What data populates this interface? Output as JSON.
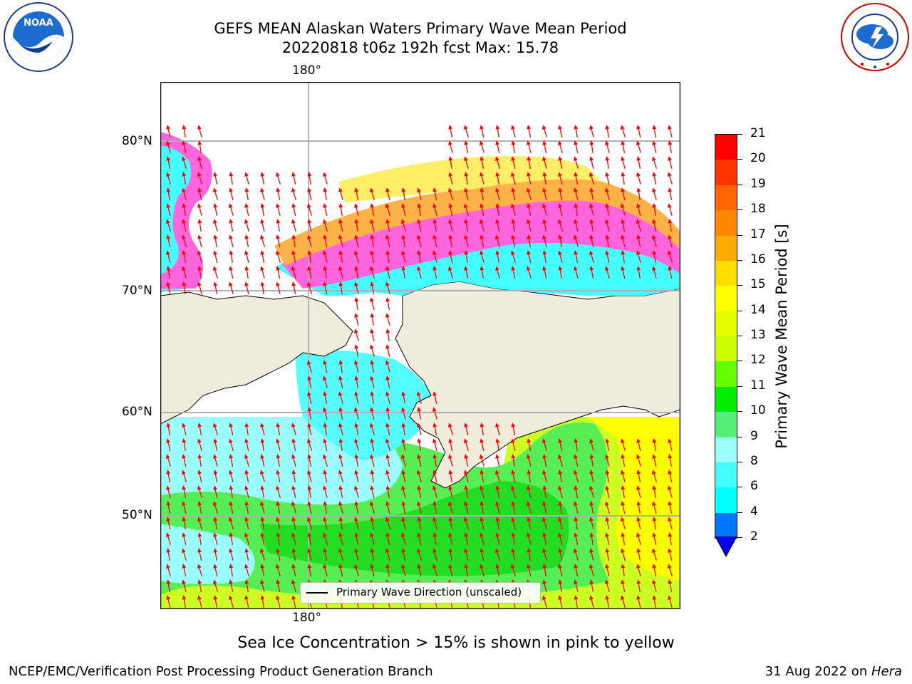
{
  "header": {
    "title_line1": "GEFS MEAN Alaskan Waters Primary Wave Mean Period",
    "title_line2": "20220818 t06z 192h fcst   Max: 15.78"
  },
  "logos": {
    "left": {
      "name": "noaa-logo",
      "text": "NOAA",
      "ring_text": "NATIONAL OCEANIC AND ATMOSPHERIC ADMINISTRATION · U.S. DEPARTMENT OF COMMERCE"
    },
    "right": {
      "name": "nws-logo",
      "ring_text": "NATIONAL WEATHER SERVICE"
    }
  },
  "map": {
    "lon_label_top": "180°",
    "lon_label_bottom": "180°",
    "lat_labels": [
      "80°N",
      "70°N",
      "60°N",
      "50°N"
    ],
    "legend_label": "Primary Wave Direction (unscaled)",
    "colors": {
      "land": "#efecdc",
      "ice_pink": "#ff66dd",
      "ice_orange": "#ffb347",
      "ice_yellow": "#ffee66",
      "arrow": "#ff0000",
      "grid": "#b0b0b0"
    }
  },
  "colorbar": {
    "label": "Primary Wave Mean Period [s]",
    "ticks": [
      "21",
      "20",
      "19",
      "18",
      "17",
      "16",
      "15",
      "14",
      "13",
      "12",
      "11",
      "10",
      "9",
      "8",
      "6",
      "4",
      "2"
    ],
    "colors": [
      "#ff0000",
      "#ff3300",
      "#ff6600",
      "#ff8800",
      "#ffaa00",
      "#ffdd00",
      "#ffff00",
      "#e6ff00",
      "#ccff00",
      "#66ff00",
      "#00ee00",
      "#55ee77",
      "#99ffff",
      "#44ffff",
      "#00ffff",
      "#0077ff",
      "#0000ee"
    ],
    "extend_color": "#0000ee"
  },
  "annotation": "Sea Ice Concentration > 15% is shown in pink to yellow",
  "footer": {
    "left": "NCEP/EMC/Verification Post Processing Product Generation Branch",
    "right_date": "31 Aug 2022 on ",
    "right_machine": "Hera"
  }
}
